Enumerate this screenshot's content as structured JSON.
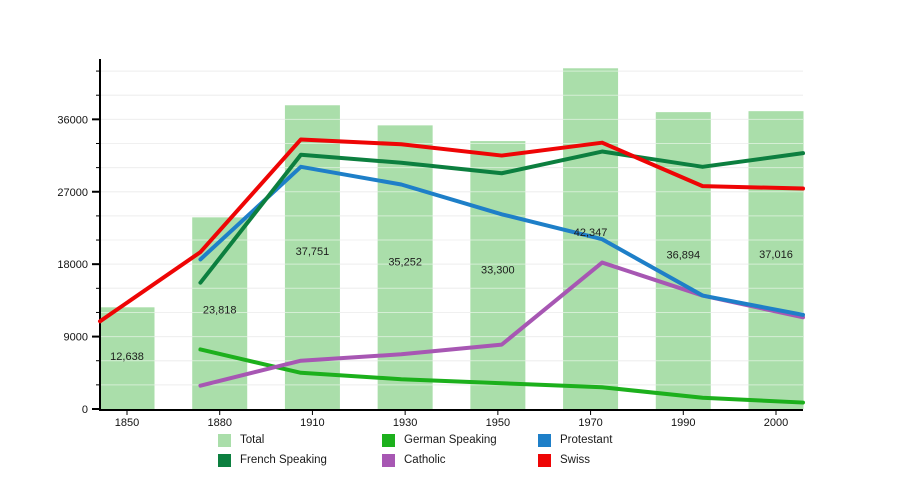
{
  "chart_data": {
    "type": "bar+line",
    "title": "",
    "categories": [
      "1850",
      "1880",
      "1910",
      "1930",
      "1950",
      "1970",
      "1990",
      "2000"
    ],
    "bar_series": {
      "name": "Total",
      "color": "#aadeaa",
      "values": [
        12638,
        23818,
        37751,
        35252,
        33300,
        42347,
        36894,
        37016
      ],
      "labels": [
        "12,638",
        "23,818",
        "37,751",
        "35,252",
        "33,300",
        "42,347",
        "36,894",
        "37,016"
      ]
    },
    "line_series": [
      {
        "name": "German Speaking",
        "color": "#1cb01c",
        "start_year": "1880",
        "values": [
          7400,
          4500,
          3700,
          3200,
          2700,
          1400,
          800
        ]
      },
      {
        "name": "Catholic",
        "color": "#a757b3",
        "start_year": "1880",
        "values": [
          2900,
          6000,
          6800,
          8000,
          18200,
          14100,
          11400
        ]
      },
      {
        "name": "Protestant",
        "color": "#1e7fc8",
        "start_year": "1880",
        "values": [
          18600,
          30100,
          27900,
          24200,
          21100,
          14100,
          11700
        ]
      },
      {
        "name": "French Speaking",
        "color": "#0c7f3f",
        "start_year": "1880",
        "values": [
          15700,
          31600,
          30600,
          29300,
          32000,
          30100,
          31800
        ]
      },
      {
        "name": "Swiss",
        "color": "#ee0505",
        "start_year": "1850",
        "values": [
          10900,
          19500,
          33500,
          32900,
          31500,
          33100,
          27700,
          27400
        ]
      }
    ],
    "y_axis": {
      "tick_labels": [
        "0",
        "9000",
        "18000",
        "27000",
        "36000"
      ],
      "ticks": [
        0,
        9000,
        18000,
        27000,
        36000
      ],
      "minor_step": 3000,
      "ylim": [
        0,
        43500
      ]
    },
    "layout_hints": {
      "grid": "horizontal minor gridlines, visible through translucent bars",
      "lines_span": "edge-to-edge",
      "legend_position": "bottom, 3 columns x 2 rows",
      "bar_label_position": "inside bar at ~52% height"
    }
  },
  "legend": {
    "items": [
      {
        "label": "Total",
        "color": "#aadeaa"
      },
      {
        "label": "German Speaking",
        "color": "#1cb01c"
      },
      {
        "label": "Protestant",
        "color": "#1e7fc8"
      },
      {
        "label": "French Speaking",
        "color": "#0c7f3f"
      },
      {
        "label": "Catholic",
        "color": "#a757b3"
      },
      {
        "label": "Swiss",
        "color": "#ee0505"
      }
    ]
  }
}
